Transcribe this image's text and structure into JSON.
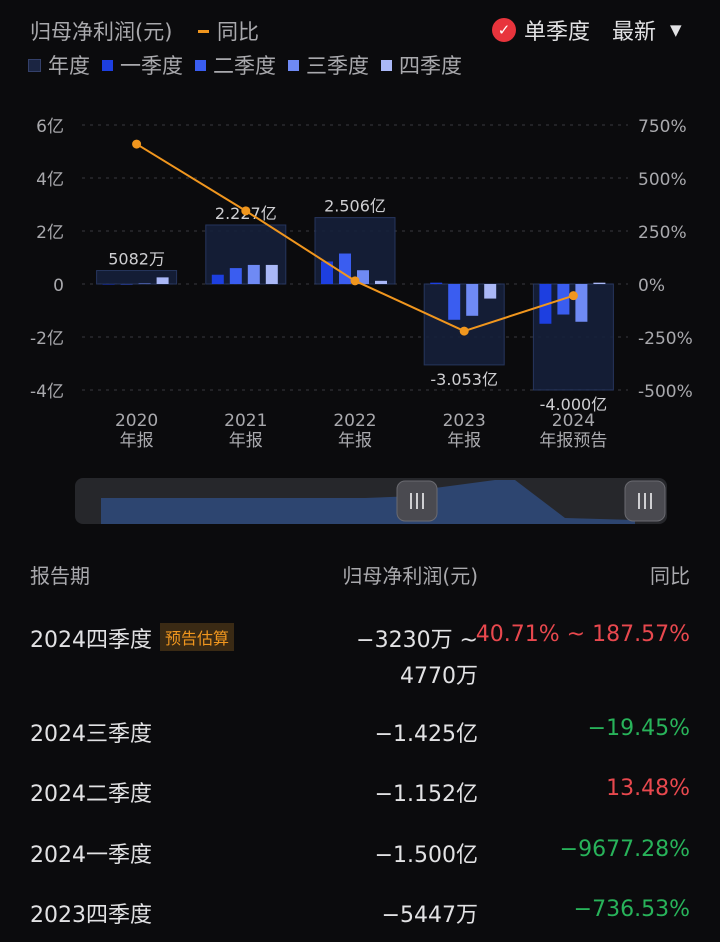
{
  "header": {
    "title": "归母净利润(元)",
    "yoy_label": "同比",
    "single_quarter_label": "单季度",
    "latest_label": "最新"
  },
  "legend": [
    {
      "label": "年度",
      "color": "#1b2542"
    },
    {
      "label": "一季度",
      "color": "#1d3fe0"
    },
    {
      "label": "二季度",
      "color": "#3a5df0"
    },
    {
      "label": "三季度",
      "color": "#6f8af4"
    },
    {
      "label": "四季度",
      "color": "#aab8f7"
    }
  ],
  "chart_data": {
    "type": "bar",
    "categories": [
      "2020\n年报",
      "2021\n年报",
      "2022\n年报",
      "2023\n年报",
      "2024\n年报预告"
    ],
    "left_axis_ticks": [
      "6亿",
      "4亿",
      "2亿",
      "0",
      "-2亿",
      "-4亿"
    ],
    "right_axis_ticks": [
      "750%",
      "500%",
      "250%",
      "0%",
      "-250%",
      "-500%"
    ],
    "ylim": [
      -4,
      6
    ],
    "y2lim": [
      -500,
      750
    ],
    "annual_values": [
      0.5082,
      2.227,
      2.506,
      -3.053,
      -4.0
    ],
    "annual_labels": [
      "5082万",
      "2.227亿",
      "2.506亿",
      "-3.053亿",
      "-4.000亿"
    ],
    "quarterly": [
      [
        0,
        0,
        0.02,
        0.25
      ],
      [
        0.35,
        0.6,
        0.72,
        0.72
      ],
      [
        0.85,
        1.15,
        0.52,
        0.12
      ],
      [
        0.05,
        -1.35,
        -1.2,
        -0.55
      ],
      [
        -1.5,
        -1.152,
        -1.425,
        0.05
      ]
    ],
    "yoy_values": [
      660,
      345,
      15,
      -222,
      -55
    ],
    "series": [
      {
        "name": "年度"
      },
      {
        "name": "一季度"
      },
      {
        "name": "二季度"
      },
      {
        "name": "三季度"
      },
      {
        "name": "四季度"
      },
      {
        "name": "同比"
      }
    ],
    "grid": true
  },
  "table": {
    "headers": {
      "period": "报告期",
      "value": "归母净利润(元)",
      "yoy": "同比"
    },
    "rows": [
      {
        "period": "2024四季度",
        "tag": "预告估算",
        "value": "−3230万 ~",
        "value2": "4770万",
        "yoy": "40.71% ~ 187.57%",
        "dir": "red"
      },
      {
        "period": "2024三季度",
        "value": "−1.425亿",
        "yoy": "−19.45%",
        "dir": "green"
      },
      {
        "period": "2024二季度",
        "value": "−1.152亿",
        "yoy": "13.48%",
        "dir": "red"
      },
      {
        "period": "2024一季度",
        "value": "−1.500亿",
        "yoy": "−9677.28%",
        "dir": "green"
      },
      {
        "period": "2023四季度",
        "value": "−5447万",
        "yoy": "−736.53%",
        "dir": "green"
      }
    ]
  },
  "colors": {
    "yoy_line": "#f0961e",
    "grid": "#3a3a3e",
    "check": "#e8343c"
  }
}
